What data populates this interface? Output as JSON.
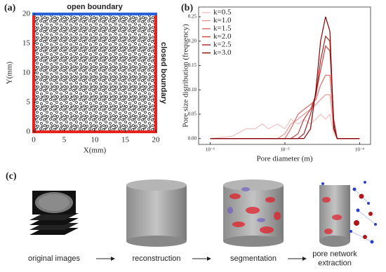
{
  "chart_data": [
    {
      "type": "domain",
      "panel": "(a)",
      "xlabel": "X(mm)",
      "ylabel": "Y(mm)",
      "xlim": [
        0,
        20
      ],
      "ylim": [
        0,
        20
      ],
      "xticks": [
        0,
        5,
        10,
        15,
        20
      ],
      "yticks": [
        0,
        5,
        10,
        15,
        20
      ],
      "annotations": [
        {
          "text": "open boundary",
          "color": "#2a62d8"
        },
        {
          "text": "closed boundary",
          "color": "#e8231e"
        }
      ]
    },
    {
      "type": "line",
      "panel": "(b)",
      "xlabel": "Pore diameter (m)",
      "ylabel": "Pore size distribution (frequency)",
      "log_x": true,
      "xlim": [
        7e-07,
        0.00014
      ],
      "ylim": [
        -0.012,
        0.27
      ],
      "xticks": [
        {
          "value": 1e-06,
          "label": "10⁻⁶"
        },
        {
          "value": 1e-05,
          "label": "10⁻⁵"
        },
        {
          "value": 0.0001,
          "label": "10⁻⁴"
        }
      ],
      "yticks": [
        {
          "value": 0,
          "label": "0.00"
        },
        0.05,
        {
          "value": 0.1,
          "label": "0.10"
        },
        0.15,
        {
          "value": 0.2,
          "label": "0.20"
        },
        0.25
      ],
      "legend": "upper left",
      "x": [
        1e-06,
        2e-06,
        3e-06,
        4e-06,
        5e-06,
        6e-06,
        8e-06,
        1e-05,
        1.2e-05,
        1.5e-05,
        1.8e-05,
        2.2e-05,
        2.6e-05,
        3e-05,
        3.5e-05,
        4e-05,
        4.5e-05,
        5e-05,
        6e-05,
        8e-05,
        0.0001
      ],
      "series": [
        {
          "name": "k=0.5",
          "color": "#f0c2c2",
          "values": [
            0,
            0.005,
            0.02,
            0.02,
            0.03,
            0.02,
            0.03,
            0.02,
            0.04,
            0.03,
            0.04,
            0.03,
            0.04,
            0.05,
            0.04,
            0.05,
            0.01,
            0,
            0,
            0,
            0
          ]
        },
        {
          "name": "k=1.0",
          "color": "#e49898",
          "values": [
            0,
            0,
            0,
            0,
            0,
            0,
            0,
            0.01,
            0.03,
            0.04,
            0.05,
            0.06,
            0.07,
            0.08,
            0.09,
            0.09,
            0.02,
            0,
            0,
            0,
            0
          ]
        },
        {
          "name": "k=1.5",
          "color": "#d66a6a",
          "values": [
            0,
            0,
            0,
            0,
            0,
            0,
            0,
            0,
            0.02,
            0.05,
            0.06,
            0.07,
            0.08,
            0.11,
            0.13,
            0.13,
            0.03,
            0,
            0,
            0,
            0
          ]
        },
        {
          "name": "k=2.0",
          "color": "#c44242",
          "values": [
            0,
            0,
            0,
            0,
            0,
            0,
            0,
            0,
            0,
            0.01,
            0.04,
            0.06,
            0.09,
            0.14,
            0.19,
            0.18,
            0.04,
            0,
            0,
            0,
            0
          ]
        },
        {
          "name": "k=2.5",
          "color": "#a42222",
          "values": [
            0,
            0,
            0,
            0,
            0,
            0,
            0,
            0,
            0,
            0,
            0.01,
            0.05,
            0.09,
            0.16,
            0.21,
            0.2,
            0.03,
            0,
            0,
            0,
            0
          ]
        },
        {
          "name": "k=3.0",
          "color": "#870000",
          "values": [
            0,
            0,
            0,
            0,
            0,
            0,
            0,
            0,
            0,
            0,
            0,
            0.02,
            0.1,
            0.2,
            0.25,
            0.22,
            0.02,
            0,
            0,
            0,
            0
          ]
        }
      ]
    }
  ],
  "pipeline": {
    "panel": "(c)",
    "stages": [
      {
        "lines": [
          "original images"
        ]
      },
      {
        "lines": [
          "reconstruction"
        ]
      },
      {
        "lines": [
          "segmentation"
        ]
      },
      {
        "lines": [
          "pore network",
          "extraction"
        ]
      }
    ]
  }
}
